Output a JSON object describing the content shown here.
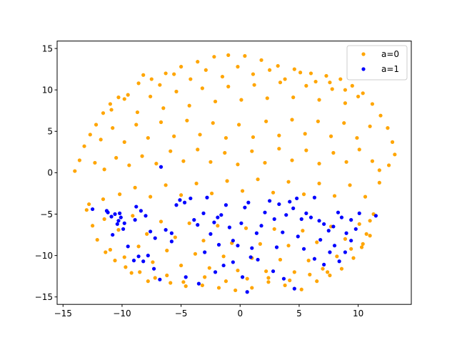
{
  "chart_data": {
    "type": "scatter",
    "title": "",
    "xlabel": "",
    "ylabel": "",
    "xlim": [
      -15.5,
      14.5
    ],
    "ylim": [
      -15.9,
      15.9
    ],
    "xticks": [
      -15,
      -10,
      -5,
      0,
      5,
      10
    ],
    "yticks": [
      -15,
      -10,
      -5,
      0,
      5,
      10,
      15
    ],
    "xtick_labels": [
      "−15",
      "−10",
      "−5",
      "0",
      "5",
      "10"
    ],
    "ytick_labels": [
      "−15",
      "−10",
      "−5",
      "0",
      "5",
      "10",
      "15"
    ],
    "grid": false,
    "legend_position": "top-right",
    "series": [
      {
        "name": "a=0",
        "color": "#ffa500",
        "points": [
          [
            -14,
            0.2
          ],
          [
            -13.6,
            1.5
          ],
          [
            -13.2,
            3.2
          ],
          [
            -12.7,
            4.6
          ],
          [
            -12.2,
            5.8
          ],
          [
            -11.6,
            7.2
          ],
          [
            -11.0,
            8.3
          ],
          [
            -10.3,
            9.1
          ],
          [
            -9.5,
            9.4
          ],
          [
            -8.6,
            10.8
          ],
          [
            -7.5,
            11.3
          ],
          [
            -6.3,
            12.0
          ],
          [
            -5.0,
            12.8
          ],
          [
            -3.6,
            13.4
          ],
          [
            -2.2,
            14.0
          ],
          [
            -1.0,
            14.2
          ],
          [
            0.4,
            14.1
          ],
          [
            1.8,
            13.6
          ],
          [
            3.2,
            12.9
          ],
          [
            4.6,
            12.5
          ],
          [
            6.0,
            12.0
          ],
          [
            7.3,
            11.7
          ],
          [
            8.5,
            11.3
          ],
          [
            9.5,
            10.5
          ],
          [
            10.4,
            9.6
          ],
          [
            11.2,
            8.3
          ],
          [
            11.9,
            6.9
          ],
          [
            12.5,
            5.4
          ],
          [
            12.9,
            3.7
          ],
          [
            13.1,
            2.2
          ],
          [
            12.6,
            0.9
          ],
          [
            11.8,
            0.3
          ],
          [
            -12.8,
            -3.8
          ],
          [
            -12.5,
            -6.4
          ],
          [
            -12.1,
            -8.1
          ],
          [
            -11.4,
            -9.6
          ],
          [
            -10.6,
            -10.6
          ],
          [
            -9.7,
            -11.4
          ],
          [
            -8.5,
            -12.0
          ],
          [
            -7.2,
            -12.7
          ],
          [
            -5.9,
            -13.3
          ],
          [
            -4.6,
            -13.7
          ],
          [
            -3.2,
            -13.6
          ],
          [
            -1.8,
            -13.9
          ],
          [
            -0.4,
            -14.2
          ],
          [
            1.0,
            -13.9
          ],
          [
            2.4,
            -13.2
          ],
          [
            3.8,
            -13.6
          ],
          [
            5.2,
            -14.1
          ],
          [
            6.5,
            -13.1
          ],
          [
            7.6,
            -12.4
          ],
          [
            8.6,
            -11.6
          ],
          [
            9.6,
            -10.3
          ],
          [
            10.3,
            -9.0
          ],
          [
            10.7,
            -7.4
          ],
          [
            11.0,
            -5.8
          ],
          [
            11.3,
            -5.0
          ],
          [
            -12.3,
            1.2
          ],
          [
            -11.5,
            0.4
          ],
          [
            -10.5,
            1.8
          ],
          [
            -9.4,
            0.9
          ],
          [
            -8.3,
            2.0
          ],
          [
            -7.1,
            1.1
          ],
          [
            -5.9,
            2.6
          ],
          [
            -4.8,
            1.4
          ],
          [
            -3.6,
            2.8
          ],
          [
            -2.5,
            1.3
          ],
          [
            -1.3,
            2.4
          ],
          [
            -0.2,
            1.0
          ],
          [
            1.0,
            2.6
          ],
          [
            2.1,
            1.2
          ],
          [
            3.3,
            2.9
          ],
          [
            4.4,
            1.5
          ],
          [
            5.6,
            2.7
          ],
          [
            6.7,
            1.1
          ],
          [
            7.9,
            2.4
          ],
          [
            9.0,
            1.3
          ],
          [
            10.1,
            2.8
          ],
          [
            11.2,
            1.4
          ],
          [
            -11.8,
            4.0
          ],
          [
            -10.8,
            5.4
          ],
          [
            -9.8,
            3.7
          ],
          [
            -8.8,
            5.8
          ],
          [
            -7.8,
            4.2
          ],
          [
            -6.7,
            6.1
          ],
          [
            -5.6,
            4.4
          ],
          [
            -4.5,
            6.3
          ],
          [
            -3.4,
            4.6
          ],
          [
            -2.3,
            6.0
          ],
          [
            -1.2,
            4.2
          ],
          [
            -0.1,
            5.8
          ],
          [
            1.1,
            4.3
          ],
          [
            2.2,
            6.2
          ],
          [
            3.3,
            4.5
          ],
          [
            4.4,
            6.4
          ],
          [
            5.5,
            4.7
          ],
          [
            6.6,
            6.2
          ],
          [
            7.7,
            4.4
          ],
          [
            8.8,
            6.0
          ],
          [
            9.9,
            4.2
          ],
          [
            11.0,
            5.6
          ],
          [
            -10.9,
            7.6
          ],
          [
            -9.8,
            8.9
          ],
          [
            -8.7,
            7.3
          ],
          [
            -7.6,
            9.2
          ],
          [
            -6.5,
            7.8
          ],
          [
            -5.4,
            9.8
          ],
          [
            -4.3,
            8.1
          ],
          [
            -3.2,
            10.2
          ],
          [
            -2.1,
            8.6
          ],
          [
            -1.0,
            10.4
          ],
          [
            0.1,
            8.8
          ],
          [
            1.2,
            10.6
          ],
          [
            2.3,
            9.0
          ],
          [
            3.4,
            10.9
          ],
          [
            4.5,
            9.1
          ],
          [
            5.6,
            10.5
          ],
          [
            6.7,
            8.8
          ],
          [
            7.8,
            10.1
          ],
          [
            8.9,
            8.4
          ],
          [
            10.0,
            9.2
          ],
          [
            -8.2,
            11.8
          ],
          [
            -6.8,
            10.6
          ],
          [
            -5.6,
            11.9
          ],
          [
            -4.2,
            11.3
          ],
          [
            -2.9,
            12.4
          ],
          [
            -1.5,
            11.6
          ],
          [
            -0.2,
            12.8
          ],
          [
            1.1,
            11.9
          ],
          [
            2.5,
            12.4
          ],
          [
            3.8,
            11.3
          ],
          [
            5.1,
            12.1
          ],
          [
            6.4,
            11.0
          ],
          [
            7.6,
            10.9
          ],
          [
            8.9,
            10.0
          ],
          [
            -13.0,
            -4.5
          ],
          [
            -11.6,
            -3.2
          ],
          [
            -10.2,
            -2.6
          ],
          [
            -8.9,
            -1.8
          ],
          [
            -7.6,
            -2.9
          ],
          [
            -6.3,
            -1.5
          ],
          [
            -5.0,
            -2.7
          ],
          [
            -3.7,
            -1.3
          ],
          [
            -2.4,
            -2.5
          ],
          [
            -1.1,
            -1.0
          ],
          [
            0.2,
            -2.2
          ],
          [
            1.5,
            -0.8
          ],
          [
            2.8,
            -2.4
          ],
          [
            4.1,
            -1.1
          ],
          [
            5.4,
            -2.6
          ],
          [
            6.7,
            -1.3
          ],
          [
            8.0,
            -2.8
          ],
          [
            9.3,
            -1.5
          ],
          [
            10.6,
            -2.9
          ],
          [
            11.8,
            -1.2
          ],
          [
            -11.5,
            -5.6
          ],
          [
            -10.3,
            -6.9
          ],
          [
            -9.1,
            -5.2
          ],
          [
            -7.9,
            -7.4
          ],
          [
            -6.7,
            -5.9
          ],
          [
            -5.5,
            -7.8
          ],
          [
            -4.3,
            -6.1
          ],
          [
            -3.1,
            -8.2
          ],
          [
            -1.9,
            -6.4
          ],
          [
            -0.7,
            -8.5
          ],
          [
            0.5,
            -6.7
          ],
          [
            1.7,
            -8.6
          ],
          [
            2.9,
            -6.8
          ],
          [
            4.1,
            -8.8
          ],
          [
            5.3,
            -7.0
          ],
          [
            6.5,
            -8.4
          ],
          [
            7.7,
            -6.5
          ],
          [
            8.9,
            -8.0
          ],
          [
            10.1,
            -6.2
          ],
          [
            11.0,
            -7.6
          ],
          [
            -11.0,
            -9.3
          ],
          [
            -9.8,
            -10.2
          ],
          [
            -8.6,
            -8.9
          ],
          [
            -7.4,
            -10.8
          ],
          [
            -6.2,
            -9.4
          ],
          [
            -5.0,
            -11.2
          ],
          [
            -3.8,
            -9.8
          ],
          [
            -2.6,
            -11.5
          ],
          [
            -1.4,
            -10.1
          ],
          [
            -0.2,
            -11.8
          ],
          [
            1.0,
            -10.3
          ],
          [
            2.2,
            -11.9
          ],
          [
            3.4,
            -10.5
          ],
          [
            4.6,
            -12.0
          ],
          [
            5.8,
            -10.6
          ],
          [
            7.0,
            -11.6
          ],
          [
            8.2,
            -10.1
          ],
          [
            9.4,
            -9.2
          ],
          [
            10.4,
            -8.6
          ],
          [
            -9.2,
            -12.1
          ],
          [
            -7.8,
            -13.1
          ],
          [
            -6.2,
            -12.4
          ],
          [
            -4.8,
            -13.2
          ],
          [
            -3.0,
            -12.6
          ],
          [
            -1.2,
            -13.1
          ],
          [
            0.6,
            -12.8
          ],
          [
            2.4,
            -12.7
          ],
          [
            4.2,
            -13.0
          ],
          [
            5.9,
            -12.3
          ],
          [
            7.4,
            -12.0
          ]
        ]
      },
      {
        "name": "a=1",
        "color": "#0000ff",
        "points": [
          [
            -12.5,
            -4.4
          ],
          [
            -11.2,
            -4.8
          ],
          [
            -10.9,
            -5.3
          ],
          [
            -10.6,
            -5.0
          ],
          [
            -10.3,
            -5.8
          ],
          [
            -10.1,
            -5.4
          ],
          [
            -10.4,
            -6.2
          ],
          [
            -9.9,
            -6.8
          ],
          [
            -10.8,
            -7.5
          ],
          [
            -9.5,
            -8.9
          ],
          [
            -8.8,
            -4.1
          ],
          [
            -8.4,
            -4.6
          ],
          [
            -8.0,
            -5.2
          ],
          [
            -7.6,
            -7.1
          ],
          [
            -7.2,
            -7.9
          ],
          [
            -6.7,
            0.7
          ],
          [
            -6.3,
            -6.9
          ],
          [
            -5.8,
            -7.3
          ],
          [
            -5.4,
            -3.9
          ],
          [
            -5.1,
            -3.3
          ],
          [
            -4.7,
            -3.6
          ],
          [
            -4.2,
            -3.1
          ],
          [
            -3.9,
            -5.7
          ],
          [
            -3.6,
            -6.3
          ],
          [
            -3.1,
            -4.9
          ],
          [
            -2.8,
            -3.0
          ],
          [
            -2.5,
            -7.4
          ],
          [
            -2.2,
            -6.0
          ],
          [
            -1.9,
            -5.4
          ],
          [
            -1.6,
            -5.1
          ],
          [
            -1.2,
            -3.9
          ],
          [
            -0.9,
            -6.6
          ],
          [
            -0.6,
            -8.2
          ],
          [
            -0.2,
            -8.8
          ],
          [
            0.1,
            -6.1
          ],
          [
            0.4,
            -4.2
          ],
          [
            0.7,
            -3.6
          ],
          [
            1.0,
            -9.1
          ],
          [
            1.4,
            -7.3
          ],
          [
            1.8,
            -6.4
          ],
          [
            2.1,
            -4.8
          ],
          [
            2.5,
            -3.4
          ],
          [
            2.9,
            -5.6
          ],
          [
            3.3,
            -3.8
          ],
          [
            3.6,
            -7.2
          ],
          [
            3.9,
            -5.1
          ],
          [
            4.2,
            -3.5
          ],
          [
            4.5,
            -4.3
          ],
          [
            4.8,
            -3.1
          ],
          [
            5.2,
            -5.6
          ],
          [
            5.6,
            -4.9
          ],
          [
            6.0,
            -5.4
          ],
          [
            6.3,
            -3.0
          ],
          [
            6.7,
            -5.8
          ],
          [
            7.1,
            -6.2
          ],
          [
            7.5,
            -7.0
          ],
          [
            7.9,
            -6.5
          ],
          [
            8.3,
            -4.8
          ],
          [
            8.6,
            -5.4
          ],
          [
            9.0,
            -7.3
          ],
          [
            9.4,
            -5.7
          ],
          [
            9.8,
            -6.8
          ],
          [
            10.1,
            -4.9
          ],
          [
            11.5,
            -5.2
          ],
          [
            -9.0,
            -10.6
          ],
          [
            -8.6,
            -10.1
          ],
          [
            -8.2,
            -10.7
          ],
          [
            -7.8,
            -10.0
          ],
          [
            -7.3,
            -11.6
          ],
          [
            -6.8,
            -12.9
          ],
          [
            -4.6,
            -12.6
          ],
          [
            -3.5,
            -13.4
          ],
          [
            -2.1,
            -12.0
          ],
          [
            -1.4,
            -11.2
          ],
          [
            -0.6,
            -10.8
          ],
          [
            0.2,
            -12.6
          ],
          [
            0.6,
            -14.4
          ],
          [
            1.5,
            -10.5
          ],
          [
            2.8,
            -11.9
          ],
          [
            3.7,
            -12.8
          ],
          [
            4.6,
            -14.0
          ],
          [
            5.4,
            -9.2
          ],
          [
            6.3,
            -10.4
          ],
          [
            7.1,
            -11.1
          ],
          [
            7.6,
            -9.6
          ],
          [
            8.0,
            -8.8
          ],
          [
            8.4,
            -10.7
          ],
          [
            8.9,
            -9.6
          ],
          [
            9.4,
            -8.2
          ],
          [
            -5.8,
            -8.3
          ],
          [
            -3.0,
            -9.6
          ],
          [
            -1.8,
            -8.7
          ],
          [
            0.9,
            -10.2
          ],
          [
            3.1,
            -9.0
          ],
          [
            4.9,
            -7.7
          ],
          [
            6.8,
            -8.1
          ],
          [
            -11.3,
            -4.6
          ],
          [
            -10.2,
            -4.9
          ],
          [
            -9.8,
            -6.1
          ],
          [
            -8.9,
            -5.7
          ]
        ]
      }
    ]
  }
}
